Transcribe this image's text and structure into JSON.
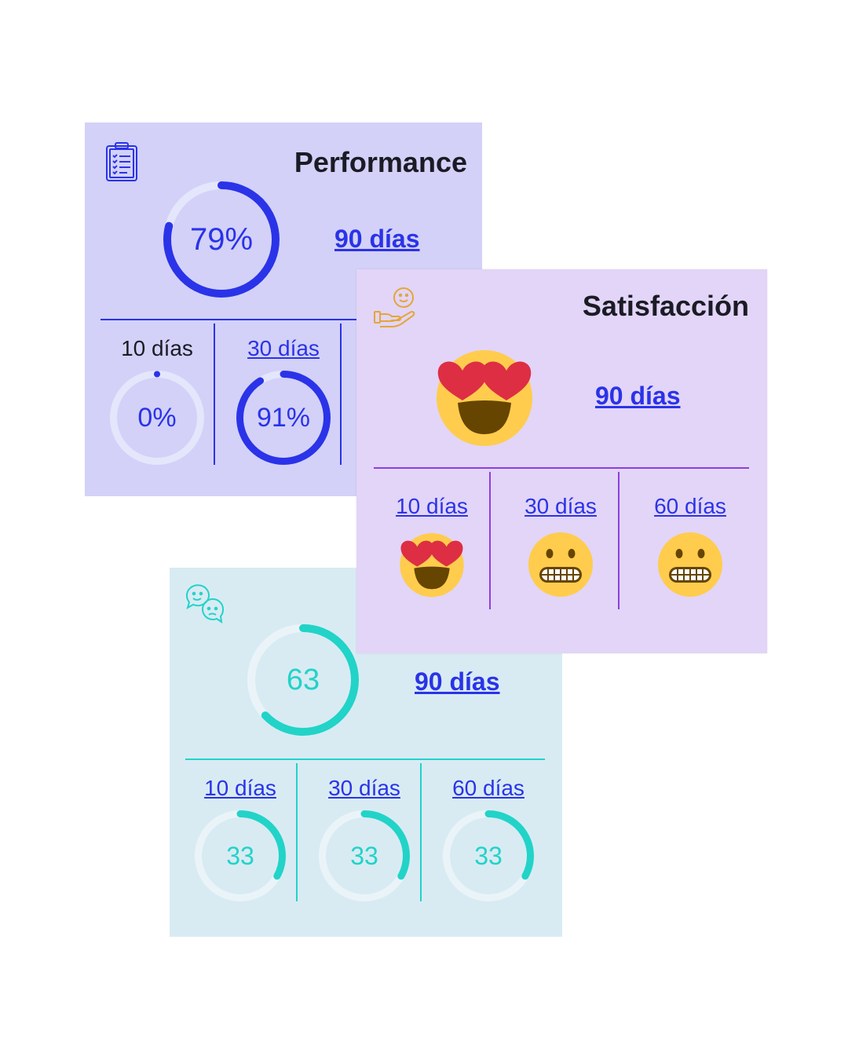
{
  "performance": {
    "title": "Performance",
    "icon": "clipboard-checklist-icon",
    "accent": "#2a33e8",
    "main": {
      "value": "79%",
      "fraction": 0.79,
      "link": "90 días"
    },
    "periods": [
      {
        "label": "10 días",
        "value": "0%",
        "fraction": 0.0
      },
      {
        "label": "30 días",
        "value": "91%",
        "fraction": 0.91
      }
    ]
  },
  "satisfaction": {
    "title": "Satisfacción",
    "icon": "hand-smile-icon",
    "accent": "#8e3de0",
    "main": {
      "emoji": "heart-eyes",
      "link": "90 días"
    },
    "periods": [
      {
        "label": "10 días",
        "emoji": "heart-eyes"
      },
      {
        "label": "30 días",
        "emoji": "grimacing"
      },
      {
        "label": "60 días",
        "emoji": "grimacing"
      }
    ]
  },
  "nps": {
    "icon": "chat-bubbles-faces-icon",
    "accent": "#22d3c8",
    "main": {
      "value": "63",
      "fraction": 0.63,
      "link": "90 días"
    },
    "periods": [
      {
        "label": "10 días",
        "value": "33",
        "fraction": 0.33
      },
      {
        "label": "30 días",
        "value": "33",
        "fraction": 0.33
      },
      {
        "label": "60 días",
        "value": "33",
        "fraction": 0.33
      }
    ]
  }
}
